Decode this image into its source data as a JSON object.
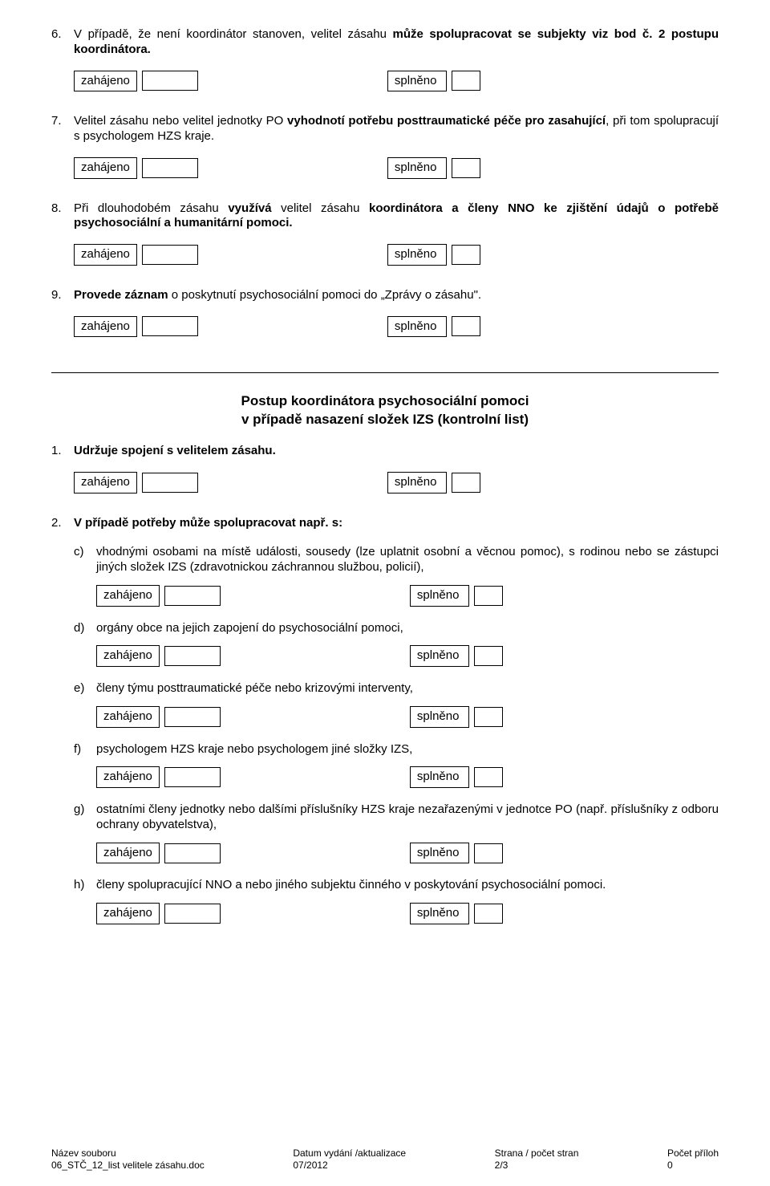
{
  "labels": {
    "zahajeno": "zahájeno",
    "splneno": "splněno"
  },
  "items": [
    {
      "num": "6.",
      "segments": [
        {
          "t": "V případě, že není koordinátor stanoven, velitel zásahu ",
          "b": false
        },
        {
          "t": "může spolupracovat se subjekty viz bod č. 2 postupu koordinátora.",
          "b": true
        }
      ]
    },
    {
      "num": "7.",
      "segments": [
        {
          "t": "Velitel zásahu nebo velitel jednotky PO ",
          "b": false
        },
        {
          "t": "vyhodnotí potřebu posttraumatické péče pro zasahující",
          "b": true
        },
        {
          "t": ", při tom spolupracují s psychologem HZS kraje.",
          "b": false
        }
      ]
    },
    {
      "num": "8.",
      "segments": [
        {
          "t": "Při dlouhodobém zásahu ",
          "b": false
        },
        {
          "t": "využívá",
          "b": true
        },
        {
          "t": " velitel zásahu ",
          "b": false
        },
        {
          "t": "koordinátora a členy NNO ke zjištění údajů o potřebě psychosociální a humanitární pomoci.",
          "b": true
        }
      ]
    },
    {
      "num": "9.",
      "segments": [
        {
          "t": "Provede záznam",
          "b": true
        },
        {
          "t": " o poskytnutí psychosociální pomoci do „Zprávy o zásahu\".",
          "b": false
        }
      ]
    }
  ],
  "section_title_line1": "Postup koordinátora psychosociální pomoci",
  "section_title_line2": "v případě nasazení složek IZS (kontrolní list)",
  "items2": [
    {
      "num": "1.",
      "segments": [
        {
          "t": "Udržuje spojení s velitelem zásahu.",
          "b": true
        }
      ],
      "check": true
    },
    {
      "num": "2.",
      "segments": [
        {
          "t": "V případě potřeby může spolupracovat např. s:",
          "b": true
        }
      ],
      "check": false
    }
  ],
  "subitems": [
    {
      "a": "c)",
      "segments": [
        {
          "t": "vhodnými osobami na místě události, sousedy (lze uplatnit osobní a věcnou pomoc), s rodinou nebo se zástupci jiných složek IZS (zdravotnickou záchrannou službou, policií),",
          "b": false
        }
      ]
    },
    {
      "a": "d)",
      "segments": [
        {
          "t": "orgány obce na jejich zapojení do psychosociální pomoci,",
          "b": false
        }
      ]
    },
    {
      "a": "e)",
      "segments": [
        {
          "t": "členy týmu posttraumatické péče nebo krizovými interventy,",
          "b": false
        }
      ]
    },
    {
      "a": "f)",
      "segments": [
        {
          "t": "psychologem HZS kraje nebo psychologem jiné složky IZS,",
          "b": false
        }
      ]
    },
    {
      "a": "g)",
      "segments": [
        {
          "t": "ostatními členy jednotky nebo dalšími příslušníky HZS kraje nezařazenými v jednotce PO (např. příslušníky z odboru ochrany obyvatelstva),",
          "b": false
        }
      ]
    },
    {
      "a": "h)",
      "segments": [
        {
          "t": "členy spolupracující NNO a nebo jiného subjektu činného v poskytování psychosociální pomoci.",
          "b": false
        }
      ]
    }
  ],
  "footer": {
    "c1l1": "Název souboru",
    "c1l2": "06_STČ_12_list velitele zásahu.doc",
    "c2l1": "Datum vydání /aktualizace",
    "c2l2": "07/2012",
    "c3l1": "Strana / počet stran",
    "c3l2": "2/3",
    "c4l1": "Počet příloh",
    "c4l2": "0"
  }
}
